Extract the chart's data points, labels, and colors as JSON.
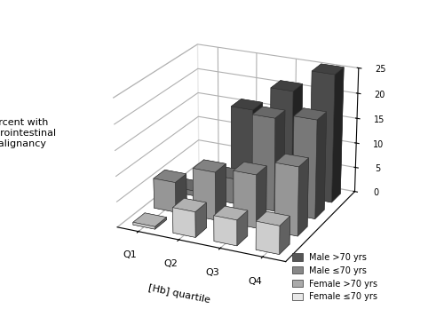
{
  "quartiles": [
    "Q1",
    "Q2",
    "Q3",
    "Q4"
  ],
  "series": [
    {
      "label": "Male >70 yrs",
      "color": "#555555",
      "values": [
        1.0,
        16.0,
        21.0,
        25.5
      ]
    },
    {
      "label": "Male ≤70 yrs",
      "color": "#888888",
      "values": [
        1.0,
        5.0,
        18.5,
        19.5
      ]
    },
    {
      "label": "Female >70 yrs",
      "color": "#aaaaaa",
      "values": [
        6.0,
        9.5,
        10.5,
        13.5
      ]
    },
    {
      "label": "Female ≤70 yrs",
      "color": "#e8e8e8",
      "values": [
        0.5,
        5.0,
        5.0,
        5.5
      ]
    }
  ],
  "ylabel": "Percent with\ngastrointestinal\nmalignancy",
  "xlabel": "[Hb] quartile",
  "ylim": [
    0,
    25
  ],
  "yticks": [
    0,
    5,
    10,
    15,
    20,
    25
  ],
  "background_color": "#ffffff",
  "bar_width": 0.55,
  "bar_depth": 0.55,
  "elev": 22,
  "azim": -65,
  "figsize": [
    5.0,
    3.57
  ],
  "dpi": 100
}
